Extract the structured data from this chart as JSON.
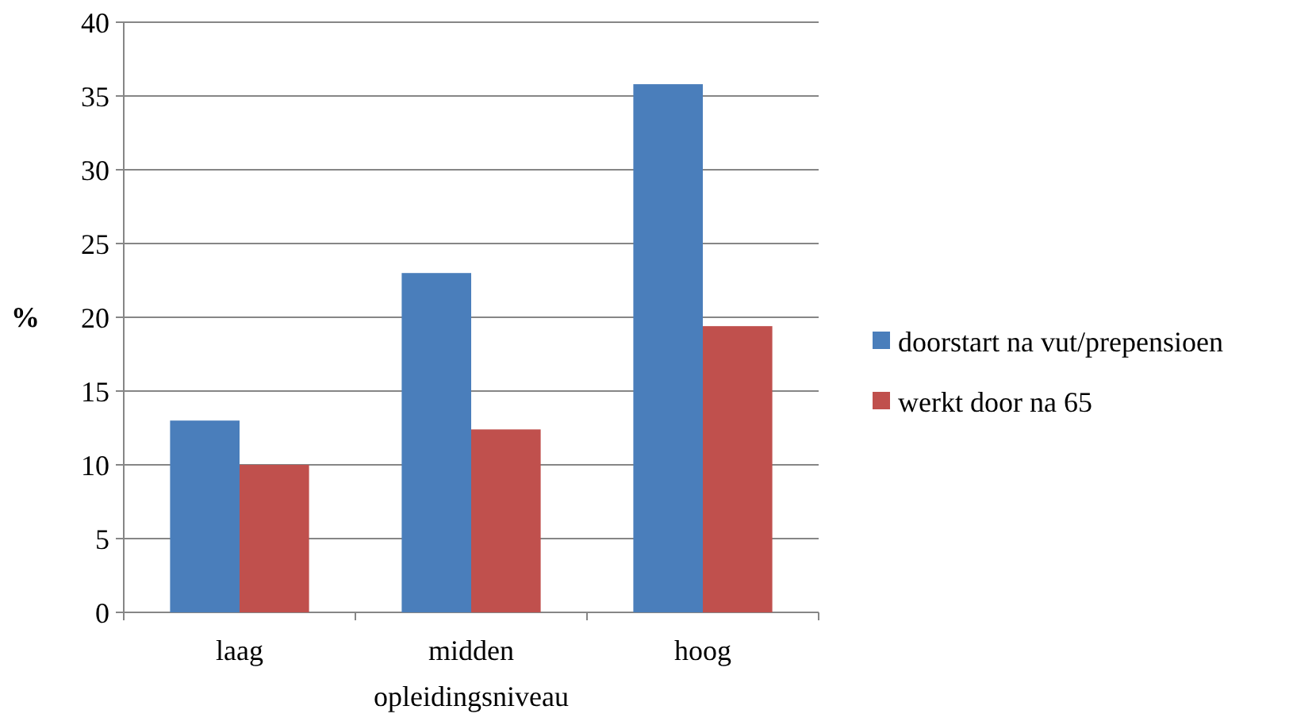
{
  "chart_data": {
    "type": "bar",
    "xlabel": "opleidingsniveau",
    "ylabel": "%",
    "categories": [
      "laag",
      "midden",
      "hoog"
    ],
    "series": [
      {
        "name": "doorstart na vut/prepensioen",
        "color": "#4a7ebb",
        "values": [
          13,
          23,
          35.8
        ]
      },
      {
        "name": "werkt door na 65",
        "color": "#c0504d",
        "values": [
          10,
          12.4,
          19.4
        ]
      }
    ],
    "ylim": [
      0,
      40
    ],
    "yticks": [
      0,
      5,
      10,
      15,
      20,
      25,
      30,
      35,
      40
    ],
    "grid": "y",
    "legend": "right"
  }
}
